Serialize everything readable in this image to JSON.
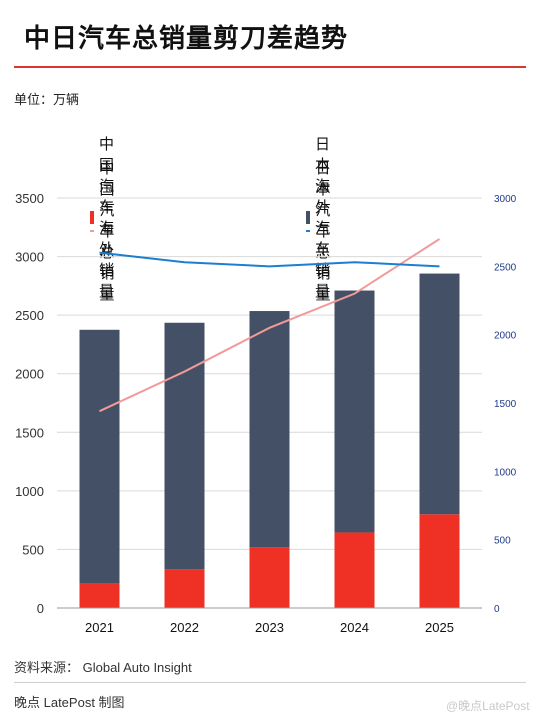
{
  "title": "中日汽车总销量剪刀差趋势",
  "unit_label": "单位：万辆",
  "legend": [
    {
      "label": "中国汽车海外销量",
      "color": "#ee3124",
      "kind": "bar"
    },
    {
      "label": "日本海外汽车销量",
      "color": "#445066",
      "kind": "bar"
    },
    {
      "label": "中国汽车总销量",
      "color": "#f29a9a",
      "kind": "line"
    },
    {
      "label": "日本汽车总销量",
      "color": "#1b7fd1",
      "kind": "line"
    }
  ],
  "chart_data": {
    "type": "bar",
    "categories": [
      "2021",
      "2022",
      "2023",
      "2024",
      "2025"
    ],
    "left_axis": {
      "ylim": [
        0,
        3500
      ],
      "ticks": [
        "0",
        "500",
        "1000",
        "1500",
        "2000",
        "2500",
        "3000",
        "3500"
      ]
    },
    "right_axis": {
      "ylim": [
        0,
        3000
      ],
      "ticks": [
        "0",
        "500",
        "1000",
        "1500",
        "2000",
        "2500",
        "3000"
      ]
    },
    "stacked_bars": [
      {
        "name": "中国汽车海外销量",
        "values": [
          210,
          330,
          520,
          645,
          800
        ],
        "color": "#ee3124"
      },
      {
        "name": "日本海外汽车销量",
        "values": [
          2165,
          2105,
          2015,
          2065,
          2055
        ],
        "color": "#445066"
      }
    ],
    "lines": [
      {
        "name": "中国汽车总销量",
        "axis": "right",
        "values": [
          1440,
          1730,
          2050,
          2300,
          2700
        ],
        "color": "#f29a9a"
      },
      {
        "name": "日本汽车总销量",
        "axis": "right",
        "values": [
          2600,
          2530,
          2500,
          2530,
          2500
        ],
        "color": "#1b7fd1"
      }
    ],
    "grid": true,
    "legend_position": "top"
  },
  "source": "资料来源： Global Auto Insight",
  "credit": "晚点 LatePost 制图",
  "watermark": "@晚点LatePost"
}
